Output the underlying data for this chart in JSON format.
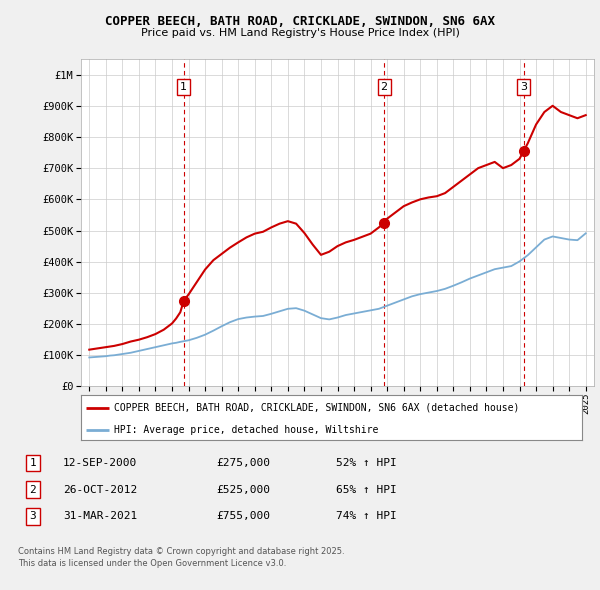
{
  "title": "COPPER BEECH, BATH ROAD, CRICKLADE, SWINDON, SN6 6AX",
  "subtitle": "Price paid vs. HM Land Registry's House Price Index (HPI)",
  "legend_label_red": "COPPER BEECH, BATH ROAD, CRICKLADE, SWINDON, SN6 6AX (detached house)",
  "legend_label_blue": "HPI: Average price, detached house, Wiltshire",
  "footer1": "Contains HM Land Registry data © Crown copyright and database right 2025.",
  "footer2": "This data is licensed under the Open Government Licence v3.0.",
  "transactions": [
    {
      "num": 1,
      "date": "12-SEP-2000",
      "price": "£275,000",
      "change": "52% ↑ HPI",
      "year": 2000.71
    },
    {
      "num": 2,
      "date": "26-OCT-2012",
      "price": "£525,000",
      "change": "65% ↑ HPI",
      "year": 2012.82
    },
    {
      "num": 3,
      "date": "31-MAR-2021",
      "price": "£755,000",
      "change": "74% ↑ HPI",
      "year": 2021.25
    }
  ],
  "red_line": {
    "years": [
      1995.0,
      1995.25,
      1995.5,
      1995.75,
      1996.0,
      1996.25,
      1996.5,
      1996.75,
      1997.0,
      1997.25,
      1997.5,
      1997.75,
      1998.0,
      1998.25,
      1998.5,
      1998.75,
      1999.0,
      1999.25,
      1999.5,
      1999.75,
      2000.0,
      2000.25,
      2000.5,
      2000.71,
      2001.0,
      2001.5,
      2002.0,
      2002.5,
      2003.0,
      2003.5,
      2004.0,
      2004.5,
      2005.0,
      2005.5,
      2006.0,
      2006.5,
      2007.0,
      2007.5,
      2008.0,
      2008.5,
      2009.0,
      2009.5,
      2010.0,
      2010.5,
      2011.0,
      2011.5,
      2012.0,
      2012.5,
      2012.82,
      2013.0,
      2013.5,
      2014.0,
      2014.5,
      2015.0,
      2015.5,
      2016.0,
      2016.5,
      2017.0,
      2017.5,
      2018.0,
      2018.5,
      2019.0,
      2019.5,
      2020.0,
      2020.5,
      2021.0,
      2021.25,
      2021.5,
      2022.0,
      2022.5,
      2023.0,
      2023.5,
      2024.0,
      2024.5,
      2025.0
    ],
    "values": [
      118000,
      120000,
      122000,
      124000,
      126000,
      128000,
      130000,
      133000,
      136000,
      140000,
      144000,
      147000,
      150000,
      154000,
      158000,
      163000,
      168000,
      175000,
      182000,
      192000,
      202000,
      218000,
      238000,
      275000,
      295000,
      335000,
      375000,
      405000,
      425000,
      445000,
      462000,
      478000,
      490000,
      496000,
      510000,
      522000,
      530000,
      522000,
      492000,
      455000,
      422000,
      432000,
      450000,
      462000,
      470000,
      480000,
      490000,
      510000,
      525000,
      538000,
      558000,
      578000,
      590000,
      600000,
      606000,
      610000,
      620000,
      640000,
      660000,
      680000,
      700000,
      710000,
      720000,
      700000,
      710000,
      730000,
      755000,
      780000,
      840000,
      880000,
      900000,
      880000,
      870000,
      860000,
      870000
    ]
  },
  "blue_line": {
    "years": [
      1995.0,
      1995.25,
      1995.5,
      1995.75,
      1996.0,
      1996.25,
      1996.5,
      1996.75,
      1997.0,
      1997.25,
      1997.5,
      1997.75,
      1998.0,
      1998.25,
      1998.5,
      1998.75,
      1999.0,
      1999.25,
      1999.5,
      1999.75,
      2000.0,
      2000.25,
      2000.5,
      2001.0,
      2001.5,
      2002.0,
      2002.5,
      2003.0,
      2003.5,
      2004.0,
      2004.5,
      2005.0,
      2005.5,
      2006.0,
      2006.5,
      2007.0,
      2007.5,
      2008.0,
      2008.5,
      2009.0,
      2009.5,
      2010.0,
      2010.5,
      2011.0,
      2011.5,
      2012.0,
      2012.5,
      2013.0,
      2013.5,
      2014.0,
      2014.5,
      2015.0,
      2015.5,
      2016.0,
      2016.5,
      2017.0,
      2017.5,
      2018.0,
      2018.5,
      2019.0,
      2019.5,
      2020.0,
      2020.5,
      2021.0,
      2021.5,
      2022.0,
      2022.5,
      2023.0,
      2023.5,
      2024.0,
      2024.5,
      2025.0
    ],
    "values": [
      93000,
      94000,
      95000,
      96000,
      97000,
      99000,
      100000,
      102000,
      104000,
      106000,
      108000,
      111000,
      114000,
      117000,
      120000,
      123000,
      126000,
      129000,
      132000,
      135000,
      138000,
      140000,
      143000,
      148000,
      156000,
      166000,
      179000,
      193000,
      206000,
      216000,
      221000,
      224000,
      226000,
      233000,
      241000,
      249000,
      251000,
      243000,
      231000,
      219000,
      215000,
      221000,
      229000,
      234000,
      239000,
      244000,
      249000,
      259000,
      269000,
      279000,
      289000,
      296000,
      301000,
      306000,
      313000,
      323000,
      334000,
      346000,
      356000,
      366000,
      376000,
      381000,
      386000,
      401000,
      421000,
      446000,
      471000,
      481000,
      476000,
      471000,
      469000,
      491000
    ]
  },
  "red_color": "#cc0000",
  "blue_color": "#7aadd4",
  "background_color": "#f0f0f0",
  "plot_bg_color": "#ffffff",
  "grid_color": "#cccccc",
  "vline_color": "#cc0000",
  "ylim": [
    0,
    1050000
  ],
  "xlim": [
    1994.5,
    2025.5
  ],
  "yticks": [
    0,
    100000,
    200000,
    300000,
    400000,
    500000,
    600000,
    700000,
    800000,
    900000,
    1000000
  ]
}
